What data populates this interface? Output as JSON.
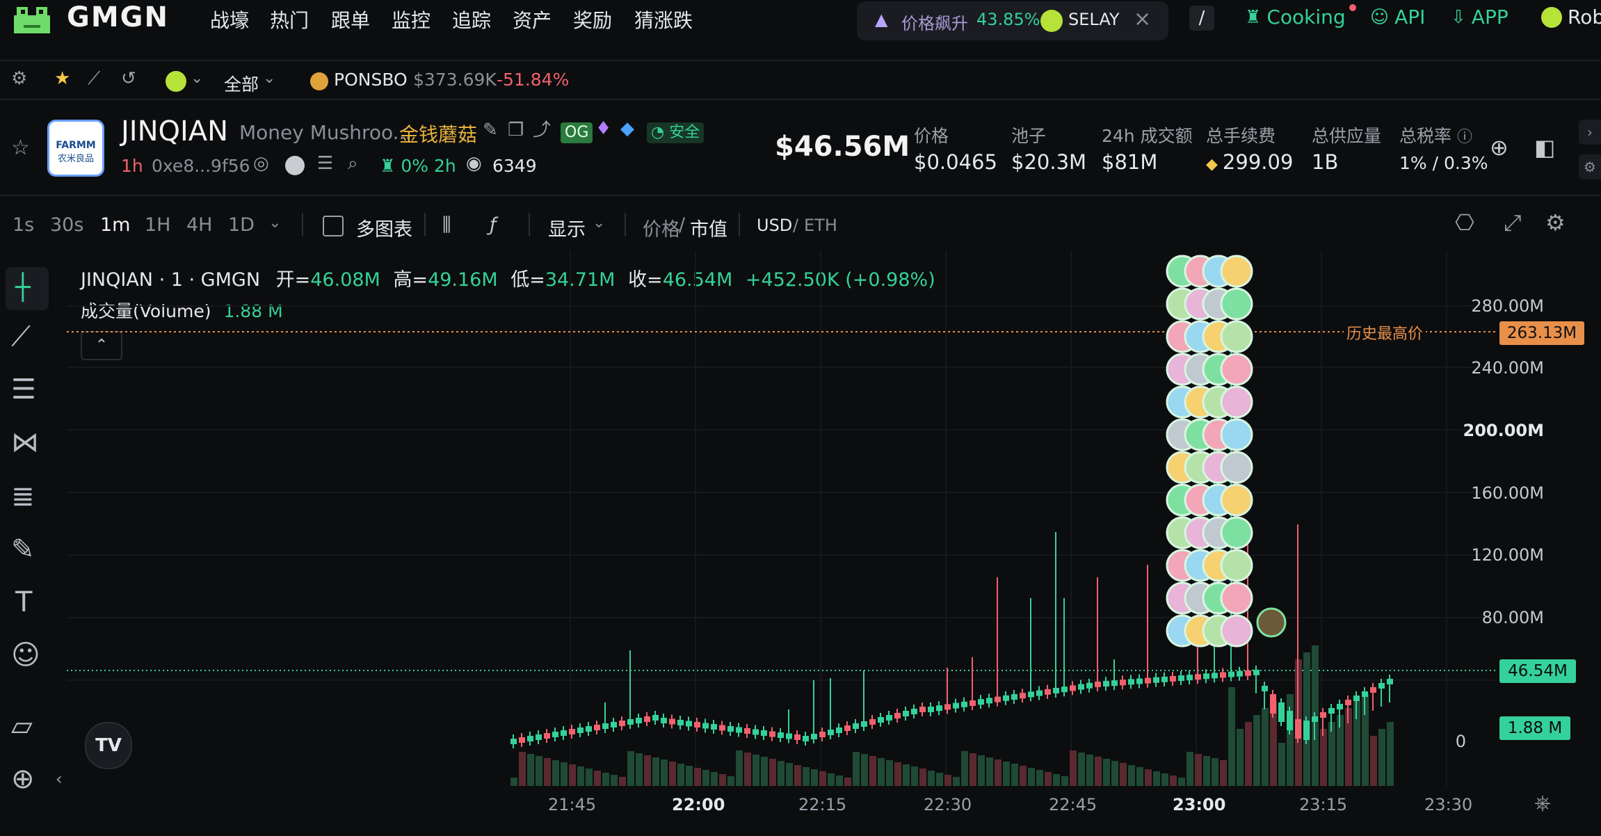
{
  "nav": {
    "brand": "GMGN",
    "items": [
      "战壕",
      "热门",
      "跟单",
      "监控",
      "追踪",
      "资产",
      "奖励",
      "猜涨跌"
    ],
    "ticker_label": "价格飙升",
    "ticker_pct": "43.85%",
    "ticker_token": "SELAY",
    "shortcut": "/",
    "cooking": "Cooking",
    "api": "API",
    "app": "APP",
    "robot": "Rob"
  },
  "subbar": {
    "filter": "全部",
    "token": "PONSBO",
    "token_mcap": "$373.69K",
    "token_change": "-51.84%"
  },
  "token": {
    "logo_text_top": "FARMM",
    "logo_text_bottom": "农米良品",
    "symbol": "JINQIAN",
    "name": "Money Mushroo...",
    "cn_name": "金钱蘑菇",
    "og_badge": "OG",
    "safe_badge": "安全",
    "age": "1h",
    "address": "0xe8...9f56",
    "tax_info": "0% 2h",
    "views": "6349",
    "market_cap": "$46.56M"
  },
  "stats": [
    {
      "label": "价格",
      "value": "$0.0465"
    },
    {
      "label": "池子",
      "value": "$20.3M"
    },
    {
      "label": "24h 成交额",
      "value": "$81M"
    },
    {
      "label": "总手续费",
      "value": "299.09"
    },
    {
      "label": "总供应量",
      "value": "1B"
    },
    {
      "label": "总税率",
      "value": "1% / 0.3%"
    }
  ],
  "toolbar": {
    "timeframes": [
      "1s",
      "30s",
      "1m",
      "1H",
      "4H",
      "1D"
    ],
    "multi_chart": "多图表",
    "display": "显示",
    "price_toggle": "价格",
    "mcap_toggle": "市值",
    "usd": "USD",
    "eth": "ETH"
  },
  "legend": {
    "title": "JINQIAN · 1 · GMGN",
    "open_label": "开=",
    "open": "46.08M",
    "high_label": "高=",
    "high": "49.16M",
    "low_label": "低=",
    "low": "34.71M",
    "close_label": "收=",
    "close": "46.54M",
    "change": "+452.50K (+0.98%)",
    "volume_label": "成交量(Volume)",
    "volume": "1.88 M"
  },
  "chart_data": {
    "type": "candlestick",
    "y_ticks": [
      "280.00M",
      "240.00M",
      "200.00M",
      "160.00M",
      "120.00M",
      "80.00M",
      "0"
    ],
    "x_ticks": [
      "21:45",
      "22:00",
      "22:15",
      "22:30",
      "22:45",
      "23:00",
      "23:15",
      "23:30"
    ],
    "ath_label": "历史最高价",
    "ath_value": "263.13M",
    "last_price": "46.54M",
    "last_volume": "1.88 M"
  }
}
